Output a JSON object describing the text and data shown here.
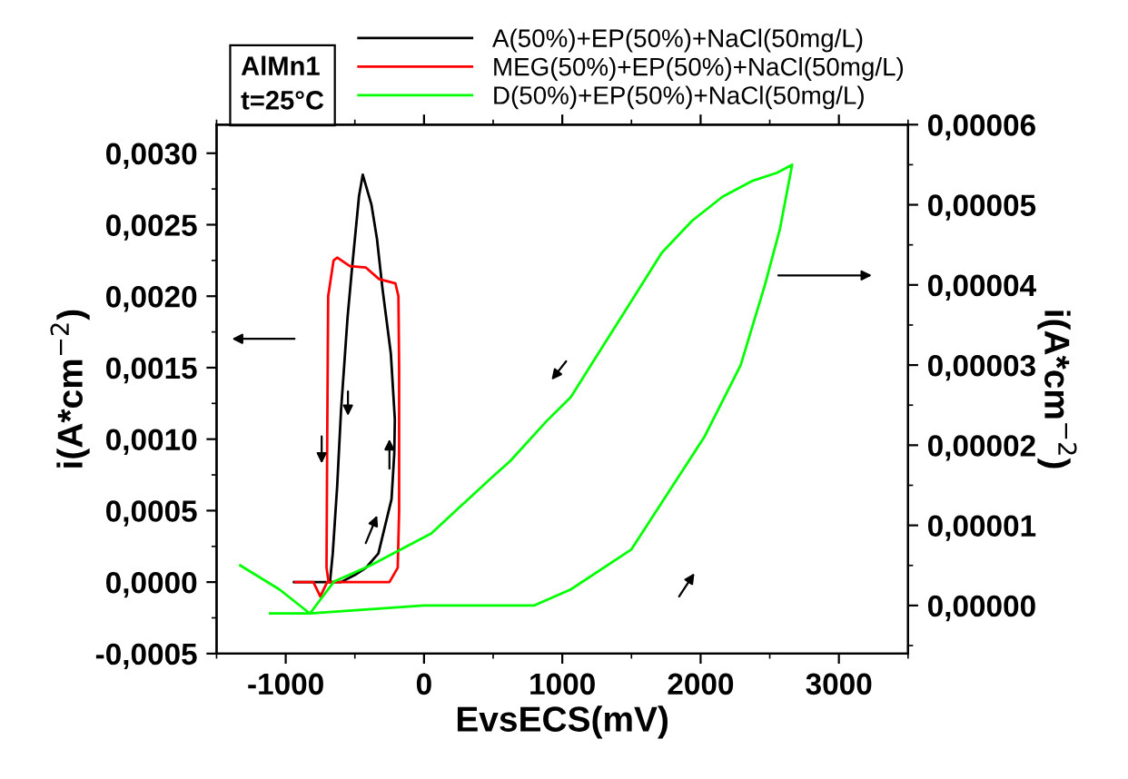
{
  "chart_data": {
    "type": "line",
    "xlabel": "EvsECS(mV)",
    "ylabel": "i(A*cm$^{−2}$)",
    "y2label": "i(A*cm$^{−2}$)",
    "annotations": [
      "AlMn1\nt=25°C"
    ],
    "xlim": [
      -1500,
      3500
    ],
    "xticks": [
      -1000,
      0,
      1000,
      2000,
      3000
    ],
    "ylim": [
      -0.0005,
      0.0032
    ],
    "yticks": [
      {
        "value": -0.0005,
        "label": "-0,0005"
      },
      {
        "value": 0,
        "label": "0,0000"
      },
      {
        "value": 0.0005,
        "label": "0,0005"
      },
      {
        "value": 0.001,
        "label": "0,0010"
      },
      {
        "value": 0.0015,
        "label": "0,0015"
      },
      {
        "value": 0.002,
        "label": "0,0020"
      },
      {
        "value": 0.0025,
        "label": "0,0025"
      },
      {
        "value": 0.003,
        "label": "0,0030"
      }
    ],
    "y2lim": [
      -6e-06,
      6e-05
    ],
    "y2ticks": [
      {
        "value": 0,
        "label": "0,00000"
      },
      {
        "value": 1e-05,
        "label": "0,00001"
      },
      {
        "value": 2e-05,
        "label": "0,00002"
      },
      {
        "value": 3e-05,
        "label": "0,00003"
      },
      {
        "value": 4e-05,
        "label": "0,00004"
      },
      {
        "value": 5e-05,
        "label": "0,00005"
      },
      {
        "value": 6e-05,
        "label": "0,00006"
      }
    ],
    "grid": false,
    "legend": "top",
    "marker": "none",
    "line_style": "solid",
    "series": [
      {
        "name": "A(50%)+EP(50%)+NaCl(50mg/L)",
        "color": "#000000",
        "x": [
          -940,
          -760,
          -600,
          -500,
          -420,
          -330,
          -280,
          -235,
          -215,
          -211,
          -240,
          -300,
          -340,
          -380,
          -443,
          -470,
          -520,
          -553,
          -600,
          -628,
          -660,
          -680
        ],
        "values": [
          0.0,
          0.0,
          0.0,
          5e-05,
          0.0001,
          0.0002,
          0.0004,
          0.00058,
          0.0009,
          0.00114,
          0.0016,
          0.00205,
          0.0024,
          0.00264,
          0.00285,
          0.0027,
          0.0022,
          0.00185,
          0.0012,
          0.00067,
          0.0002,
          0.0
        ]
      },
      {
        "name": "MEG(50%)+EP(50%)+NaCl(50mg/L)",
        "color": "#ff0000",
        "x": [
          -930,
          -800,
          -750,
          -700,
          -600,
          -400,
          -250,
          -190,
          -180,
          -180,
          -185,
          -207,
          -325,
          -420,
          -536,
          -628,
          -654,
          -693,
          -700,
          -705,
          -690
        ],
        "values": [
          0.0,
          0.0,
          -0.0001,
          0.0,
          0.0,
          0.0,
          0.0,
          0.0001,
          0.0005,
          0.0015,
          0.002,
          0.00209,
          0.00212,
          0.0022,
          0.00221,
          0.00227,
          0.00225,
          0.002,
          0.001,
          0.0001,
          0.0
        ]
      },
      {
        "name": "D(50%)+EP(50%)+NaCl(50mg/L)",
        "color": "#00ff00",
        "axis": "y2",
        "x": [
          -1113,
          -825,
          0,
          622,
          794,
          1061,
          1500,
          1763,
          2026,
          2290,
          2465,
          2574,
          2640,
          2662,
          2553,
          2377,
          2158,
          1938,
          1719,
          1500,
          1280,
          1061,
          886,
          622,
          491,
          53,
          -387,
          -650,
          -825,
          -1045,
          -1329
        ],
        "values": [
          -1e-06,
          -1e-06,
          0.0,
          0.0,
          0.0,
          2e-06,
          7e-06,
          1.4e-05,
          2.1e-05,
          3e-05,
          4e-05,
          4.7e-05,
          5.3e-05,
          5.5e-05,
          5.4e-05,
          5.3e-05,
          5.1e-05,
          4.8e-05,
          4.4e-05,
          3.8e-05,
          3.2e-05,
          2.6e-05,
          2.3e-05,
          1.8e-05,
          1.6e-05,
          9e-06,
          5e-06,
          3e-06,
          -1e-06,
          2e-06,
          5e-06
        ]
      }
    ]
  }
}
